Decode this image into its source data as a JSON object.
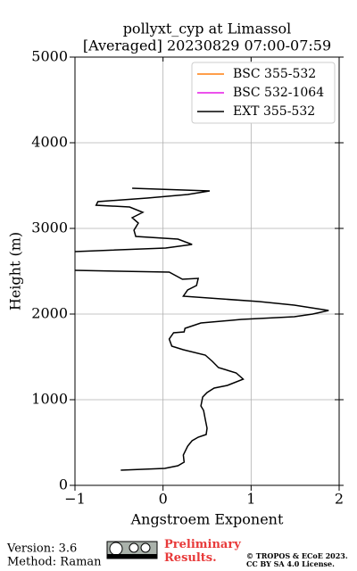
{
  "chart_data": {
    "type": "line",
    "orientation": "vertical-profile",
    "title_lines": [
      "pollyxt_cyp at Limassol",
      "[Averaged] 20230829 07:00-07:59"
    ],
    "xlabel": "Angstroem Exponent",
    "ylabel": "Height (m)",
    "xlim": [
      -1,
      2
    ],
    "ylim": [
      0,
      5000
    ],
    "xticks": [
      {
        "value": -1,
        "label": "−1"
      },
      0,
      1,
      2
    ],
    "yticks": [
      0,
      1000,
      2000,
      3000,
      4000,
      5000
    ],
    "grid": true,
    "legend": "upper right",
    "heights": [
      177,
      198,
      229,
      271,
      354,
      458,
      521,
      562,
      594,
      667,
      771,
      875,
      927,
      1031,
      1083,
      1135,
      1167,
      1240,
      1313,
      1375,
      1448,
      1521,
      1583,
      1625,
      1708,
      1781,
      1792,
      1833,
      1896,
      1938,
      1969,
      2000,
      2042,
      2104,
      2146,
      2208,
      2281,
      2333,
      2417,
      2406,
      2490,
      2510,
      2620,
      2729,
      2771,
      2813,
      2875,
      2906,
      2979,
      3063,
      3125,
      3188,
      3250,
      3271,
      3313,
      3354,
      3396,
      3438,
      3469
    ],
    "series": [
      {
        "name": "BSC 355-532",
        "color": "#ff7f0e",
        "values": [
          null,
          null,
          null,
          null,
          null,
          null,
          null,
          null,
          null,
          null,
          null,
          null,
          null,
          null,
          null,
          null,
          null,
          null,
          null,
          null,
          null,
          null,
          null,
          null,
          null,
          null,
          null,
          null,
          null,
          null,
          null,
          null,
          null,
          null,
          null,
          null,
          null,
          null,
          null,
          null,
          null,
          null,
          null,
          null,
          null,
          null,
          null,
          null,
          null,
          null,
          null,
          null,
          null,
          null,
          null,
          null,
          null,
          null,
          null
        ]
      },
      {
        "name": "BSC 532-1064",
        "color": "#e619e6",
        "values": [
          null,
          null,
          null,
          null,
          null,
          null,
          null,
          null,
          null,
          null,
          null,
          null,
          null,
          null,
          null,
          null,
          null,
          null,
          null,
          null,
          null,
          null,
          null,
          null,
          null,
          null,
          null,
          null,
          null,
          null,
          null,
          null,
          null,
          null,
          null,
          null,
          null,
          null,
          null,
          null,
          null,
          null,
          null,
          null,
          null,
          null,
          null,
          null,
          null,
          null,
          null,
          null,
          null,
          null,
          null,
          null,
          null,
          null,
          null
        ]
      },
      {
        "name": "EXT 355-532",
        "color": "#000000",
        "values": [
          -0.48,
          0.02,
          0.17,
          0.24,
          0.23,
          0.28,
          0.33,
          0.4,
          0.49,
          0.5,
          0.48,
          0.46,
          0.43,
          0.45,
          0.5,
          0.58,
          0.73,
          0.91,
          0.83,
          0.63,
          0.56,
          0.48,
          0.23,
          0.1,
          0.07,
          0.12,
          0.24,
          0.25,
          0.43,
          0.89,
          1.49,
          1.7,
          1.88,
          1.49,
          1.09,
          0.23,
          0.28,
          0.38,
          0.4,
          0.22,
          0.07,
          -1.0,
          null,
          -1.0,
          0.03,
          0.33,
          0.17,
          -0.31,
          -0.33,
          -0.28,
          -0.35,
          -0.23,
          -0.38,
          -0.76,
          -0.74,
          -0.18,
          0.28,
          0.53,
          -0.35
        ]
      }
    ]
  },
  "footer": {
    "version": "Version: 3.6",
    "method": "Method: Raman",
    "preliminary": "Preliminary Results.",
    "copyright_lines": [
      "© TROPOS & ECoE 2023.",
      "CC BY SA 4.0 License."
    ]
  }
}
